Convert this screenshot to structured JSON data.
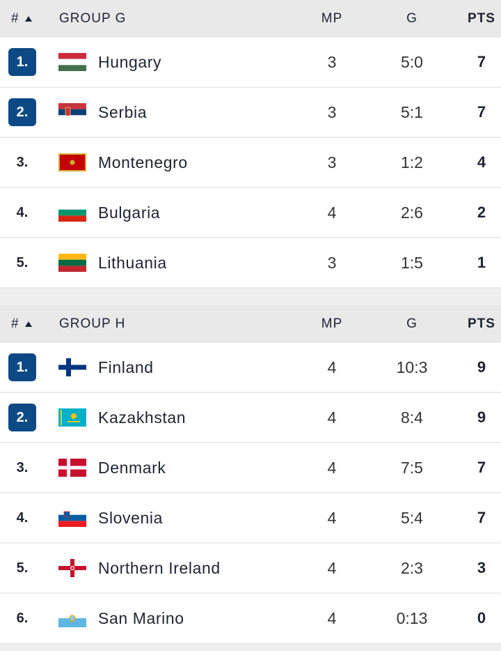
{
  "groups": [
    {
      "header": {
        "rank_label": "#",
        "title": "GROUP G",
        "mp": "MP",
        "g": "G",
        "pts": "PTS"
      },
      "rows": [
        {
          "rank": "1.",
          "qualified": true,
          "team": "Hungary",
          "flag": "hungary-flag",
          "mp": "3",
          "g": "5:0",
          "pts": "7"
        },
        {
          "rank": "2.",
          "qualified": true,
          "team": "Serbia",
          "flag": "serbia-flag",
          "mp": "3",
          "g": "5:1",
          "pts": "7"
        },
        {
          "rank": "3.",
          "qualified": false,
          "team": "Montenegro",
          "flag": "montenegro-flag",
          "mp": "3",
          "g": "1:2",
          "pts": "4"
        },
        {
          "rank": "4.",
          "qualified": false,
          "team": "Bulgaria",
          "flag": "bulgaria-flag",
          "mp": "4",
          "g": "2:6",
          "pts": "2"
        },
        {
          "rank": "5.",
          "qualified": false,
          "team": "Lithuania",
          "flag": "lithuania-flag",
          "mp": "3",
          "g": "1:5",
          "pts": "1"
        }
      ]
    },
    {
      "header": {
        "rank_label": "#",
        "title": "GROUP H",
        "mp": "MP",
        "g": "G",
        "pts": "PTS"
      },
      "rows": [
        {
          "rank": "1.",
          "qualified": true,
          "team": "Finland",
          "flag": "finland-flag",
          "mp": "4",
          "g": "10:3",
          "pts": "9"
        },
        {
          "rank": "2.",
          "qualified": true,
          "team": "Kazakhstan",
          "flag": "kazakhstan-flag",
          "mp": "4",
          "g": "8:4",
          "pts": "9"
        },
        {
          "rank": "3.",
          "qualified": false,
          "team": "Denmark",
          "flag": "denmark-flag",
          "mp": "4",
          "g": "7:5",
          "pts": "7"
        },
        {
          "rank": "4.",
          "qualified": false,
          "team": "Slovenia",
          "flag": "slovenia-flag",
          "mp": "4",
          "g": "5:4",
          "pts": "7"
        },
        {
          "rank": "5.",
          "qualified": false,
          "team": "Northern Ireland",
          "flag": "northern-ireland-flag",
          "mp": "4",
          "g": "2:3",
          "pts": "3"
        },
        {
          "rank": "6.",
          "qualified": false,
          "team": "San Marino",
          "flag": "san-marino-flag",
          "mp": "4",
          "g": "0:13",
          "pts": "0"
        }
      ]
    }
  ],
  "colors": {
    "qualified_badge": "#0d4a85",
    "header_bg": "#e9e9ea",
    "row_bg": "#ffffff"
  }
}
